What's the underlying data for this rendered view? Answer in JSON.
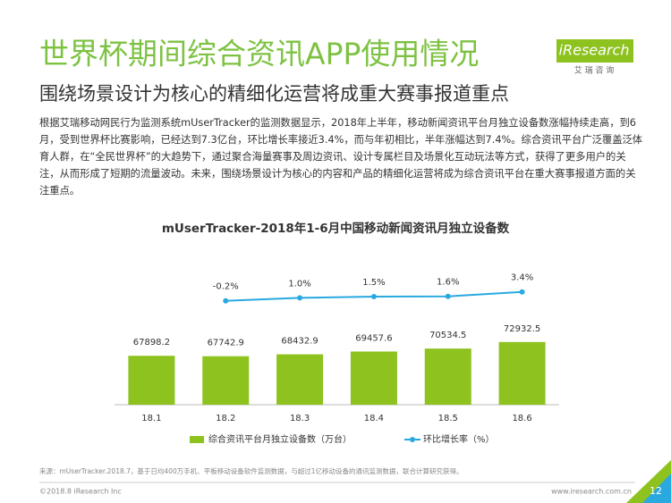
{
  "header": {
    "title": "世界杯期间综合资讯APP使用情况",
    "subtitle": "围绕场景设计为核心的精细化运营将成重大赛事报道重点",
    "logo": "iResearch",
    "logo_sub": "艾 瑞 咨 询"
  },
  "paragraph": "根据艾瑞移动网民行为监测系统mUserTracker的监测数据显示，2018年上半年，移动新闻资讯平台月独立设备数涨幅持续走高，到6月，受到世界杯比赛影响，已经达到7.3亿台，环比增长率接近3.4%，而与年初相比，半年涨幅达到7.4%。综合资讯平台广泛覆盖泛体育人群，在“全民世界杯”的大趋势下，通过聚合海量赛事及周边资讯、设计专属栏目及场景化互动玩法等方式，获得了更多用户的关注，从而形成了短期的流量波动。未来，围绕场景设计为核心的内容和产品的精细化运营将成为综合资讯平台在重大赛事报道方面的关注重点。",
  "chart_data": {
    "type": "bar",
    "title": "mUserTracker-2018年1-6月中国移动新闻资讯月独立设备数",
    "categories": [
      "18.1",
      "18.2",
      "18.3",
      "18.4",
      "18.5",
      "18.6"
    ],
    "series": [
      {
        "name": "综合资讯平台月独立设备数（万台）",
        "type": "bar",
        "color": "#8dc21f",
        "values": [
          67898.2,
          67742.9,
          68432.9,
          69457.6,
          70534.5,
          72932.5
        ]
      },
      {
        "name": "环比增长率（%）",
        "type": "line",
        "axis": "y2",
        "color": "#29a9e0",
        "values": [
          null,
          -0.2,
          1.0,
          1.5,
          1.6,
          3.4
        ],
        "value_labels": [
          null,
          "-0.2%",
          "1.0%",
          "1.5%",
          "1.6%",
          "3.4%"
        ]
      }
    ],
    "ylim": [
      50000,
      100000
    ],
    "y2lim": [
      -42,
      13
    ]
  },
  "footer": {
    "source": "来源：mUserTracker.2018.7，基于日均400万手机、平板移动设备软件监测数据，与超过1亿移动设备的通讯监测数据，联合计算研究获得。",
    "copyright": "©2018.8 iResearch Inc",
    "url": "www.iresearch.com.cn",
    "page": "12"
  }
}
